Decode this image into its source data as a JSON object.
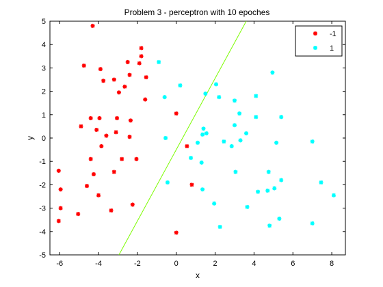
{
  "chart_data": {
    "type": "scatter",
    "title": "Problem 3 - perceptron with 10 epoches",
    "xlabel": "x",
    "ylabel": "y",
    "xlim": [
      -6.5,
      8.7
    ],
    "ylim": [
      -5,
      5
    ],
    "xticks": [
      -6,
      -4,
      -2,
      0,
      2,
      4,
      6,
      8
    ],
    "yticks": [
      -5,
      -4,
      -3,
      -2,
      -1,
      0,
      1,
      2,
      3,
      4,
      5
    ],
    "grid": false,
    "legend_position": "top-right",
    "series": [
      {
        "name": "-1",
        "color": "#ff0000",
        "marker": "asterisk",
        "points": [
          [
            -4.3,
            4.8
          ],
          [
            -1.8,
            3.85
          ],
          [
            -1.8,
            3.5
          ],
          [
            -4.75,
            3.1
          ],
          [
            -2.5,
            3.25
          ],
          [
            -1.9,
            3.2
          ],
          [
            -3.9,
            2.95
          ],
          [
            -2.4,
            2.7
          ],
          [
            -1.55,
            2.6
          ],
          [
            -3.75,
            2.45
          ],
          [
            -3.2,
            2.5
          ],
          [
            -2.65,
            2.2
          ],
          [
            -2.95,
            1.95
          ],
          [
            -1.6,
            1.65
          ],
          [
            -4.4,
            0.85
          ],
          [
            -3.95,
            0.85
          ],
          [
            -3.05,
            0.85
          ],
          [
            -2.35,
            0.75
          ],
          [
            -4.9,
            0.5
          ],
          [
            -4.1,
            0.35
          ],
          [
            -3.1,
            0.25
          ],
          [
            -3.6,
            0.1
          ],
          [
            -2.4,
            0.05
          ],
          [
            -3.85,
            -0.35
          ],
          [
            -4.4,
            -0.9
          ],
          [
            -2.8,
            -0.9
          ],
          [
            -2.05,
            -0.9
          ],
          [
            -4.25,
            -1.55
          ],
          [
            -3.2,
            -1.45
          ],
          [
            -6.05,
            -1.4
          ],
          [
            -4.6,
            -2.05
          ],
          [
            -5.95,
            -2.2
          ],
          [
            -4.0,
            -2.45
          ],
          [
            -2.25,
            -2.85
          ],
          [
            -5.95,
            -3.0
          ],
          [
            -3.35,
            -3.1
          ],
          [
            -5.05,
            -3.25
          ],
          [
            -6.05,
            -3.55
          ],
          [
            0.0,
            1.05
          ],
          [
            0.55,
            -0.35
          ],
          [
            0.8,
            -2.0
          ],
          [
            0.0,
            -4.05
          ]
        ]
      },
      {
        "name": "1",
        "color": "#00ffff",
        "marker": "asterisk",
        "points": [
          [
            -0.9,
            3.25
          ],
          [
            0.2,
            2.25
          ],
          [
            2.05,
            2.3
          ],
          [
            4.95,
            2.8
          ],
          [
            -0.6,
            1.75
          ],
          [
            1.5,
            1.9
          ],
          [
            2.2,
            1.75
          ],
          [
            3.0,
            1.6
          ],
          [
            4.1,
            1.8
          ],
          [
            3.25,
            1.05
          ],
          [
            4.1,
            0.9
          ],
          [
            5.4,
            0.9
          ],
          [
            3.0,
            0.55
          ],
          [
            1.4,
            0.4
          ],
          [
            1.55,
            0.2
          ],
          [
            1.35,
            0.15
          ],
          [
            3.6,
            0.2
          ],
          [
            -0.55,
            0.0
          ],
          [
            2.45,
            -0.15
          ],
          [
            3.3,
            -0.1
          ],
          [
            1.1,
            -0.2
          ],
          [
            5.15,
            -0.2
          ],
          [
            7.0,
            -0.15
          ],
          [
            2.85,
            -0.35
          ],
          [
            0.75,
            -0.85
          ],
          [
            1.3,
            -1.05
          ],
          [
            -0.45,
            -1.9
          ],
          [
            3.05,
            -1.45
          ],
          [
            4.75,
            -1.45
          ],
          [
            5.4,
            -1.8
          ],
          [
            7.45,
            -1.9
          ],
          [
            1.35,
            -2.2
          ],
          [
            4.7,
            -2.25
          ],
          [
            5.05,
            -2.15
          ],
          [
            4.2,
            -2.3
          ],
          [
            8.1,
            -2.45
          ],
          [
            1.95,
            -2.8
          ],
          [
            3.65,
            -2.95
          ],
          [
            5.3,
            -3.45
          ],
          [
            2.25,
            -3.8
          ],
          [
            4.8,
            -3.75
          ],
          [
            7.0,
            -3.65
          ]
        ]
      }
    ],
    "decision_boundary": {
      "color": "#7cfc00",
      "points": [
        [
          -2.95,
          -5.0
        ],
        [
          3.6,
          5.0
        ]
      ]
    }
  }
}
